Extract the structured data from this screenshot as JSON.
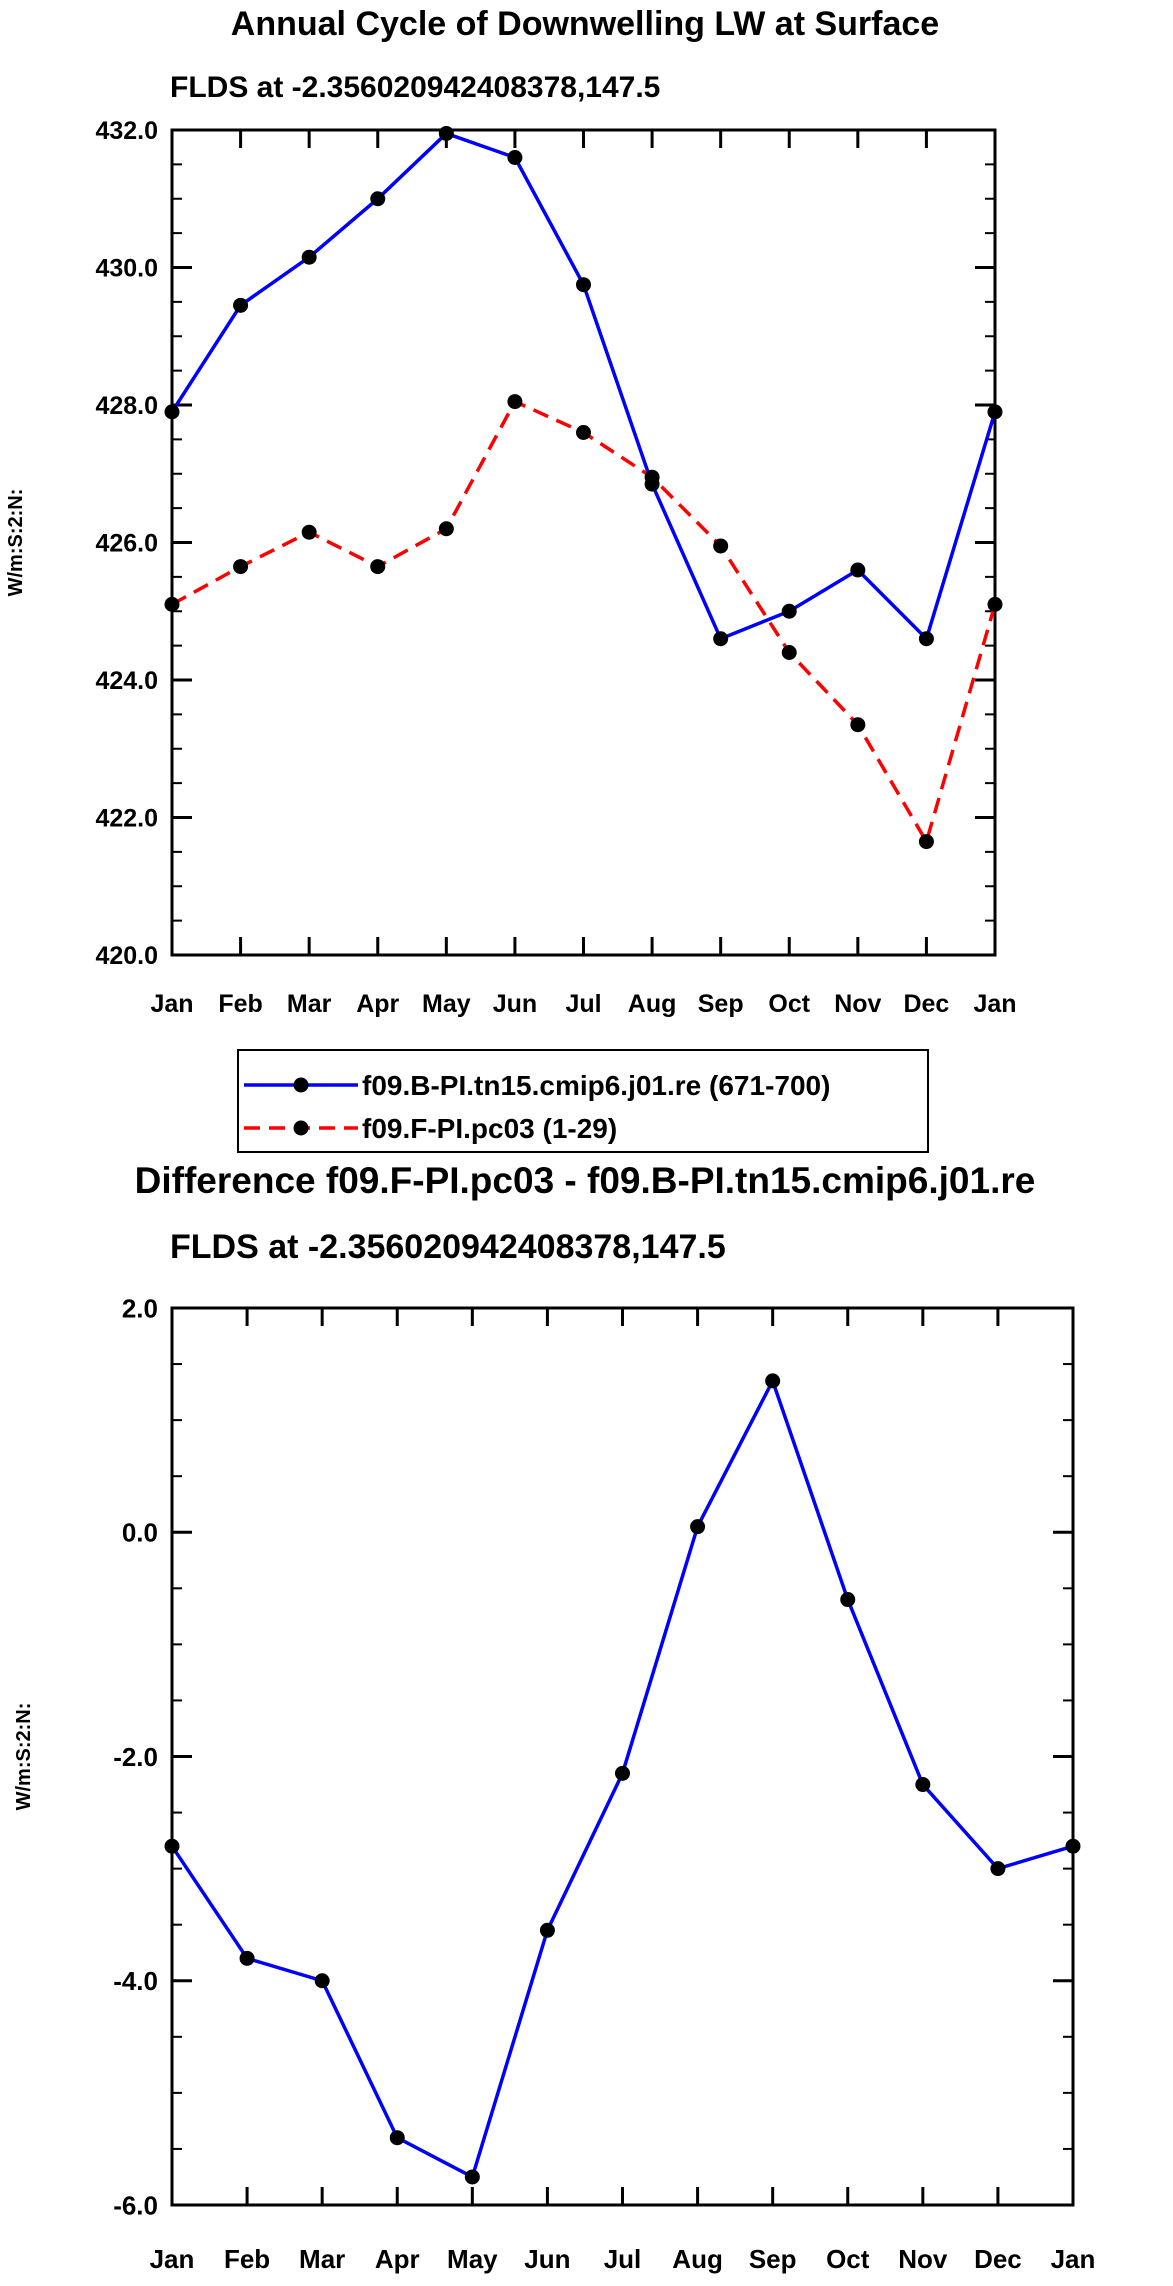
{
  "chart_data": [
    {
      "type": "line",
      "title": "Annual Cycle of Downwelling LW at Surface",
      "subtitle": "FLDS at -2.356020942408378,147.5",
      "xlabel": "",
      "ylabel": "W/m:S:2:N:",
      "categories": [
        "Jan",
        "Feb",
        "Mar",
        "Apr",
        "May",
        "Jun",
        "Jul",
        "Aug",
        "Sep",
        "Oct",
        "Nov",
        "Dec",
        "Jan"
      ],
      "ylim": [
        420.0,
        432.0
      ],
      "yticks": [
        "420.0",
        "422.0",
        "424.0",
        "426.0",
        "428.0",
        "430.0",
        "432.0"
      ],
      "series": [
        {
          "name": "f09.B-PI.tn15.cmip6.j01.re (671-700)",
          "color": "#0000ff",
          "dash": "solid",
          "values": [
            427.9,
            429.45,
            430.15,
            431.0,
            431.95,
            431.6,
            429.75,
            426.85,
            424.6,
            425.0,
            425.6,
            424.6,
            427.9
          ]
        },
        {
          "name": "f09.F-PI.pc03 (1-29)",
          "color": "#ff0000",
          "dash": "dashed",
          "values": [
            425.1,
            425.65,
            426.15,
            425.65,
            426.2,
            428.05,
            427.6,
            426.95,
            425.95,
            424.4,
            423.35,
            421.65,
            425.1
          ]
        }
      ],
      "legend": "bottom"
    },
    {
      "type": "line",
      "title": "Difference f09.F-PI.pc03 - f09.B-PI.tn15.cmip6.j01.re",
      "subtitle": "FLDS at -2.356020942408378,147.5",
      "xlabel": "",
      "ylabel": "W/m:S:2:N:",
      "categories": [
        "Jan",
        "Feb",
        "Mar",
        "Apr",
        "May",
        "Jun",
        "Jul",
        "Aug",
        "Sep",
        "Oct",
        "Nov",
        "Dec",
        "Jan"
      ],
      "ylim": [
        -6.0,
        2.0
      ],
      "yticks": [
        "-6.0",
        "-4.0",
        "-2.0",
        "0.0",
        "2.0"
      ],
      "series": [
        {
          "name": "Difference",
          "color": "#0000ff",
          "dash": "solid",
          "values": [
            -2.8,
            -3.8,
            -4.0,
            -5.4,
            -5.75,
            -3.55,
            -2.15,
            0.05,
            1.35,
            -0.6,
            -2.25,
            -3.0,
            -2.8
          ]
        }
      ]
    }
  ]
}
